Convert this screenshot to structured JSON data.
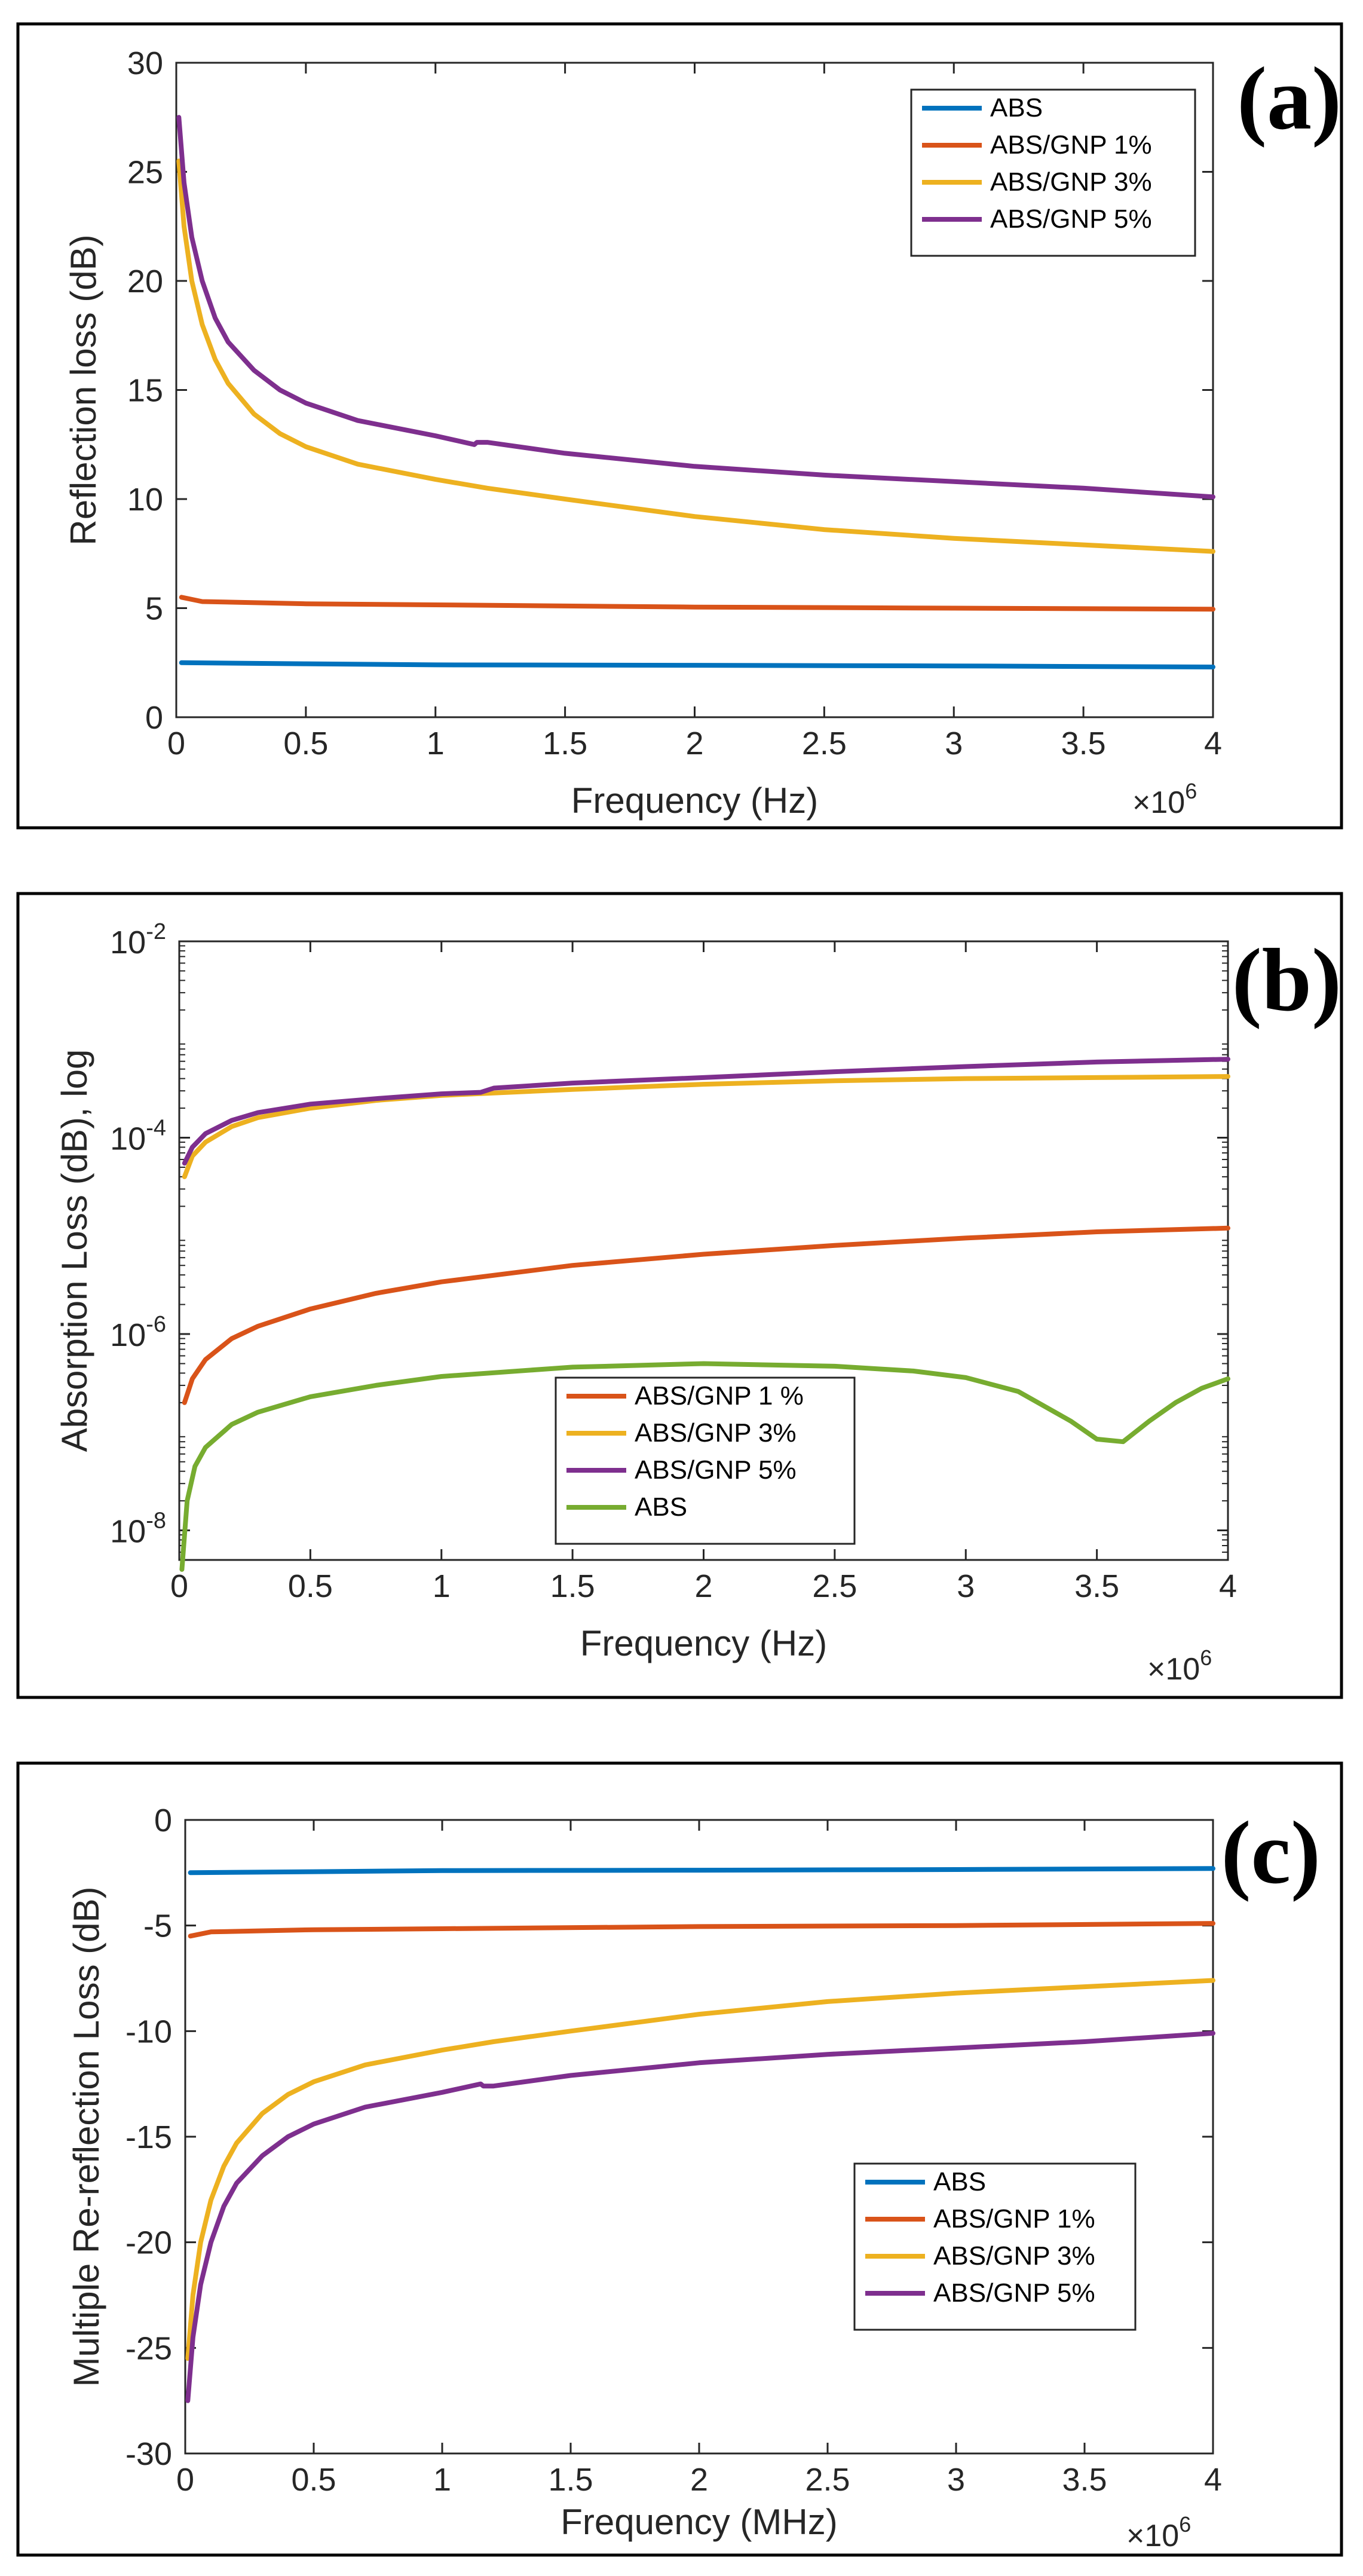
{
  "colors": {
    "ABS": "#0072BD",
    "ABS/GNP 1%": "#D95319",
    "ABS/GNP 3%": "#EDB120",
    "ABS/GNP 5%": "#7E2F8E",
    "ABS_b": "#77AC30"
  },
  "chart_data": [
    {
      "type": "line",
      "panel_label": "(a)",
      "xlabel": "Frequency (Hz)",
      "ylabel": "Reflection loss (dB)",
      "x_multiplier": "×10",
      "x_multiplier_exp": "6",
      "xlim": [
        0,
        4
      ],
      "ylim": [
        0,
        30
      ],
      "x_ticks": [
        0,
        0.5,
        1,
        1.5,
        2,
        2.5,
        3,
        3.5,
        4
      ],
      "x_tick_labels": [
        "0",
        "0.5",
        "1",
        "1.5",
        "2",
        "2.5",
        "3",
        "3.5",
        "4"
      ],
      "y_ticks": [
        0,
        5,
        10,
        15,
        20,
        25,
        30
      ],
      "y_tick_labels": [
        "0",
        "5",
        "10",
        "15",
        "20",
        "25",
        "30"
      ],
      "legend": "top-right",
      "series": [
        {
          "name": "ABS",
          "color_key": "ABS",
          "x": [
            0.02,
            0.5,
            1,
            2,
            3,
            4
          ],
          "y": [
            2.5,
            2.45,
            2.4,
            2.38,
            2.35,
            2.3
          ]
        },
        {
          "name": "ABS/GNP 1%",
          "color_key": "ABS/GNP 1%",
          "x": [
            0.02,
            0.1,
            0.5,
            1,
            2,
            3,
            4
          ],
          "y": [
            5.5,
            5.3,
            5.2,
            5.15,
            5.05,
            5.0,
            4.95
          ]
        },
        {
          "name": "ABS/GNP 3%",
          "color_key": "ABS/GNP 3%",
          "x": [
            0.01,
            0.03,
            0.06,
            0.1,
            0.15,
            0.2,
            0.3,
            0.4,
            0.5,
            0.7,
            1,
            1.2,
            1.5,
            2,
            2.5,
            3,
            3.5,
            4
          ],
          "y": [
            25.5,
            22.5,
            20.0,
            18.0,
            16.4,
            15.3,
            13.9,
            13.0,
            12.4,
            11.6,
            10.9,
            10.5,
            10.0,
            9.2,
            8.6,
            8.2,
            7.9,
            7.6
          ]
        },
        {
          "name": "ABS/GNP 5%",
          "color_key": "ABS/GNP 5%",
          "x": [
            0.01,
            0.03,
            0.06,
            0.1,
            0.15,
            0.2,
            0.3,
            0.4,
            0.5,
            0.7,
            1,
            1.15,
            1.16,
            1.2,
            1.5,
            2,
            2.5,
            3,
            3.5,
            4
          ],
          "y": [
            27.5,
            24.5,
            22.0,
            20.0,
            18.3,
            17.2,
            15.9,
            15.0,
            14.4,
            13.6,
            12.9,
            12.5,
            12.6,
            12.6,
            12.1,
            11.5,
            11.1,
            10.8,
            10.5,
            10.1
          ]
        }
      ]
    },
    {
      "type": "line",
      "panel_label": "(b)",
      "xlabel": "Frequency (Hz)",
      "ylabel": "Absorption Loss (dB), log",
      "y_scale": "log",
      "x_multiplier": "×10",
      "x_multiplier_exp": "6",
      "xlim": [
        0,
        4
      ],
      "ylim": [
        5e-09,
        0.01
      ],
      "x_ticks": [
        0,
        0.5,
        1,
        1.5,
        2,
        2.5,
        3,
        3.5,
        4
      ],
      "x_tick_labels": [
        "0",
        "0.5",
        "1",
        "1.5",
        "2",
        "2.5",
        "3",
        "3.5",
        "4"
      ],
      "y_ticks": [
        1e-08,
        1e-06,
        0.0001,
        0.01
      ],
      "y_tick_base": "10",
      "y_tick_exps": [
        "-8",
        "-6",
        "-4",
        "-2"
      ],
      "legend": "bottom-center",
      "series": [
        {
          "name": "ABS/GNP 1 %",
          "color_key": "ABS/GNP 1%",
          "x": [
            0.02,
            0.05,
            0.1,
            0.2,
            0.3,
            0.5,
            0.75,
            1,
            1.5,
            2,
            2.5,
            3,
            3.5,
            4
          ],
          "y": [
            2e-07,
            3.5e-07,
            5.5e-07,
            9e-07,
            1.2e-06,
            1.8e-06,
            2.6e-06,
            3.4e-06,
            5e-06,
            6.5e-06,
            8e-06,
            9.5e-06,
            1.1e-05,
            1.2e-05
          ]
        },
        {
          "name": "ABS/GNP 3%",
          "color_key": "ABS/GNP 3%",
          "x": [
            0.02,
            0.05,
            0.1,
            0.2,
            0.3,
            0.5,
            0.75,
            1,
            1.5,
            2,
            2.5,
            3,
            3.5,
            4
          ],
          "y": [
            4e-05,
            6.5e-05,
            9e-05,
            0.00013,
            0.00016,
            0.0002,
            0.00024,
            0.00027,
            0.00031,
            0.00035,
            0.00038,
            0.0004,
            0.00041,
            0.00042
          ]
        },
        {
          "name": "ABS/GNP 5%",
          "color_key": "ABS/GNP 5%",
          "x": [
            0.02,
            0.05,
            0.1,
            0.2,
            0.3,
            0.5,
            0.75,
            1,
            1.15,
            1.2,
            1.5,
            2,
            2.5,
            3,
            3.5,
            4
          ],
          "y": [
            5.5e-05,
            8e-05,
            0.00011,
            0.00015,
            0.00018,
            0.00022,
            0.00025,
            0.00028,
            0.00029,
            0.00032,
            0.00036,
            0.00041,
            0.00047,
            0.00053,
            0.00059,
            0.00063
          ]
        },
        {
          "name": "ABS",
          "color_key": "ABS_b",
          "x": [
            0.01,
            0.03,
            0.06,
            0.1,
            0.2,
            0.3,
            0.5,
            0.75,
            1,
            1.5,
            2,
            2.5,
            2.8,
            3.0,
            3.2,
            3.4,
            3.5,
            3.6,
            3.7,
            3.8,
            3.9,
            4
          ],
          "y": [
            4e-09,
            2e-08,
            4.5e-08,
            7e-08,
            1.2e-07,
            1.6e-07,
            2.3e-07,
            3e-07,
            3.7e-07,
            4.6e-07,
            5e-07,
            4.7e-07,
            4.2e-07,
            3.6e-07,
            2.6e-07,
            1.3e-07,
            8.5e-08,
            8e-08,
            1.3e-07,
            2e-07,
            2.8e-07,
            3.5e-07
          ]
        }
      ]
    },
    {
      "type": "line",
      "panel_label": "(c)",
      "xlabel": "Frequency (MHz)",
      "ylabel": "Multiple Re-reflection Loss (dB)",
      "x_multiplier": "×10",
      "x_multiplier_exp": "6",
      "xlim": [
        0,
        4
      ],
      "ylim": [
        -30,
        0
      ],
      "x_ticks": [
        0,
        0.5,
        1,
        1.5,
        2,
        2.5,
        3,
        3.5,
        4
      ],
      "x_tick_labels": [
        "0",
        "0.5",
        "1",
        "1.5",
        "2",
        "2.5",
        "3",
        "3.5",
        "4"
      ],
      "y_ticks": [
        -30,
        -25,
        -20,
        -15,
        -10,
        -5,
        0
      ],
      "y_tick_labels": [
        "-30",
        "-25",
        "-20",
        "-15",
        "-10",
        "-5",
        "0"
      ],
      "legend": "bottom-right",
      "series": [
        {
          "name": "ABS",
          "color_key": "ABS",
          "x": [
            0.02,
            0.5,
            1,
            2,
            3,
            4
          ],
          "y": [
            -2.5,
            -2.45,
            -2.4,
            -2.38,
            -2.35,
            -2.3
          ]
        },
        {
          "name": "ABS/GNP 1%",
          "color_key": "ABS/GNP 1%",
          "x": [
            0.02,
            0.1,
            0.5,
            1,
            2,
            3,
            4
          ],
          "y": [
            -5.5,
            -5.3,
            -5.2,
            -5.15,
            -5.05,
            -5.0,
            -4.9
          ]
        },
        {
          "name": "ABS/GNP 3%",
          "color_key": "ABS/GNP 3%",
          "x": [
            0.01,
            0.03,
            0.06,
            0.1,
            0.15,
            0.2,
            0.3,
            0.4,
            0.5,
            0.7,
            1,
            1.2,
            1.5,
            2,
            2.5,
            3,
            3.5,
            4
          ],
          "y": [
            -25.5,
            -22.5,
            -20.0,
            -18.0,
            -16.4,
            -15.3,
            -13.9,
            -13.0,
            -12.4,
            -11.6,
            -10.9,
            -10.5,
            -10.0,
            -9.2,
            -8.6,
            -8.2,
            -7.9,
            -7.6
          ]
        },
        {
          "name": "ABS/GNP 5%",
          "color_key": "ABS/GNP 5%",
          "x": [
            0.01,
            0.03,
            0.06,
            0.1,
            0.15,
            0.2,
            0.3,
            0.4,
            0.5,
            0.7,
            1,
            1.15,
            1.16,
            1.2,
            1.5,
            2,
            2.5,
            3,
            3.5,
            4
          ],
          "y": [
            -27.5,
            -24.5,
            -22.0,
            -20.0,
            -18.3,
            -17.2,
            -15.9,
            -15.0,
            -14.4,
            -13.6,
            -12.9,
            -12.5,
            -12.6,
            -12.6,
            -12.1,
            -11.5,
            -11.1,
            -10.8,
            -10.5,
            -10.1
          ]
        }
      ]
    }
  ]
}
